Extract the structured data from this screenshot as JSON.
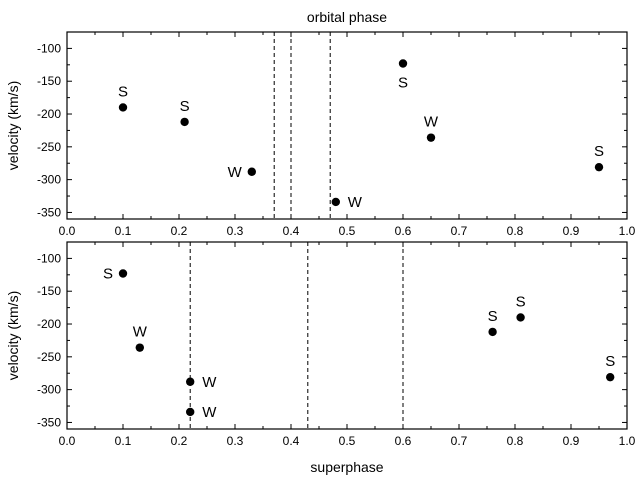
{
  "chart_data": [
    {
      "type": "scatter",
      "title": "orbital phase",
      "xlabel": "",
      "ylabel": "velocity (km/s)",
      "xlim": [
        0.0,
        1.0
      ],
      "ylim": [
        -360,
        -75
      ],
      "grid": false,
      "x_ticks": [
        "0.0",
        "0.1",
        "0.2",
        "0.3",
        "0.4",
        "0.5",
        "0.6",
        "0.7",
        "0.8",
        "0.9",
        "1.0"
      ],
      "y_ticks": [
        "-100",
        "-150",
        "-200",
        "-250",
        "-300",
        "-350"
      ],
      "points": [
        {
          "x": 0.1,
          "y": -190,
          "label": "S"
        },
        {
          "x": 0.21,
          "y": -212,
          "label": "S"
        },
        {
          "x": 0.33,
          "y": -288,
          "label": "W"
        },
        {
          "x": 0.48,
          "y": -334,
          "label": "W"
        },
        {
          "x": 0.6,
          "y": -123,
          "label": "S"
        },
        {
          "x": 0.65,
          "y": -236,
          "label": "W"
        },
        {
          "x": 0.95,
          "y": -281,
          "label": "S"
        }
      ],
      "vlines": [
        0.37,
        0.4,
        0.47
      ]
    },
    {
      "type": "scatter",
      "title": "",
      "xlabel": "superphase",
      "ylabel": "velocity (km/s)",
      "xlim": [
        0.0,
        1.0
      ],
      "ylim": [
        -360,
        -75
      ],
      "grid": false,
      "x_ticks": [
        "0.0",
        "0.1",
        "0.2",
        "0.3",
        "0.4",
        "0.5",
        "0.6",
        "0.7",
        "0.8",
        "0.9",
        "1.0"
      ],
      "y_ticks": [
        "-100",
        "-150",
        "-200",
        "-250",
        "-300",
        "-350"
      ],
      "points": [
        {
          "x": 0.1,
          "y": -123,
          "label": "S"
        },
        {
          "x": 0.13,
          "y": -236,
          "label": "W"
        },
        {
          "x": 0.22,
          "y": -288,
          "label": "W"
        },
        {
          "x": 0.22,
          "y": -334,
          "label": "W"
        },
        {
          "x": 0.76,
          "y": -212,
          "label": "S"
        },
        {
          "x": 0.81,
          "y": -190,
          "label": "S"
        },
        {
          "x": 0.97,
          "y": -281,
          "label": "S"
        }
      ],
      "vlines": [
        0.22,
        0.43,
        0.6
      ]
    }
  ]
}
